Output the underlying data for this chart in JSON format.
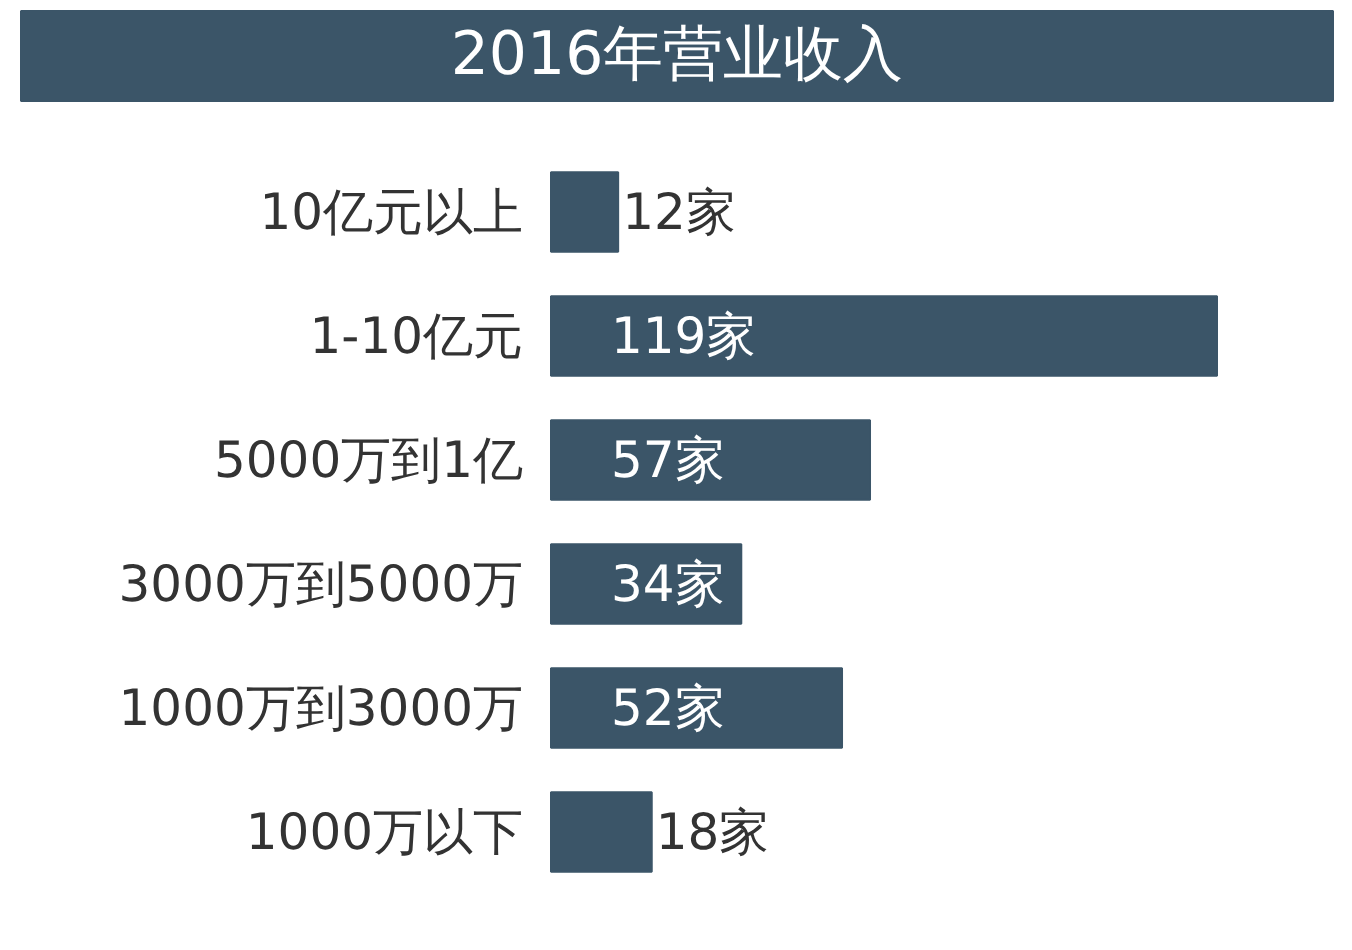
{
  "chart_data": {
    "type": "bar",
    "orientation": "horizontal",
    "title": "2016年营业收入",
    "categories": [
      "10亿元以上",
      "1-10亿元",
      "5000万到1亿",
      "3000万到5000万",
      "1000万到3000万",
      "1000万以下"
    ],
    "values": [
      12,
      119,
      57,
      34,
      52,
      18
    ],
    "value_labels": [
      "12家",
      "119家",
      "57家",
      "34家",
      "52家",
      "18家"
    ],
    "color": "#3b5568"
  }
}
